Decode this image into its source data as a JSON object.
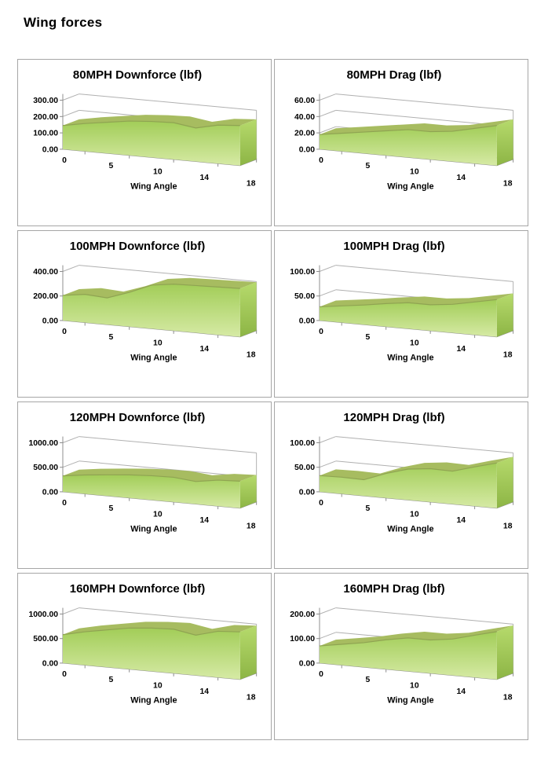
{
  "page": {
    "title": "Wing forces"
  },
  "colors": {
    "border": "#a6a6a6",
    "axis": "#8c8c8c",
    "grid": "#b0b0b0",
    "area_front_top": "#a2cd58",
    "area_front_bottom": "#d6eaa5",
    "ribbon_top": "#a7bc60",
    "lip": "#8fa452",
    "side_top": "#b6da6c",
    "side_bottom": "#8db545",
    "text": "#000000"
  },
  "chart_data": [
    {
      "type": "area",
      "title": "80MPH Downforce (lbf)",
      "xlabel": "Wing Angle",
      "x": [
        0,
        2,
        5,
        7,
        10,
        12,
        14,
        16,
        18
      ],
      "x_tick_labels": [
        "0",
        "5",
        "10",
        "14",
        "18"
      ],
      "y_ticks": [
        0,
        100,
        200,
        300
      ],
      "y_tick_format": "0.00",
      "ylim": [
        0,
        300
      ],
      "values": [
        145,
        170,
        190,
        210,
        220,
        225,
        205,
        235,
        245
      ],
      "grid": true,
      "legend": false
    },
    {
      "type": "area",
      "title": "80MPH Drag (lbf)",
      "xlabel": "Wing Angle",
      "x": [
        0,
        2,
        5,
        7,
        10,
        12,
        14,
        16,
        18
      ],
      "x_tick_labels": [
        "0",
        "5",
        "10",
        "14",
        "18"
      ],
      "y_ticks": [
        0,
        20,
        40,
        60
      ],
      "y_tick_format": "0.00",
      "ylim": [
        0,
        60
      ],
      "values": [
        18,
        22,
        26,
        30,
        34,
        34,
        37,
        43,
        49
      ],
      "grid": true,
      "legend": false
    },
    {
      "type": "area",
      "title": "100MPH Downforce (lbf)",
      "xlabel": "Wing Angle",
      "x": [
        0,
        2,
        5,
        7,
        10,
        12,
        14,
        16,
        18
      ],
      "x_tick_labels": [
        "0",
        "5",
        "10",
        "14",
        "18"
      ],
      "y_ticks": [
        0,
        200,
        400
      ],
      "y_tick_format": "0.00",
      "ylim": [
        0,
        400
      ],
      "values": [
        205,
        230,
        218,
        280,
        355,
        380,
        385,
        390,
        395
      ],
      "grid": true,
      "legend": false
    },
    {
      "type": "area",
      "title": "100MPH Drag (lbf)",
      "xlabel": "Wing Angle",
      "x": [
        0,
        2,
        5,
        7,
        10,
        12,
        14,
        16,
        18
      ],
      "x_tick_labels": [
        "0",
        "5",
        "10",
        "14",
        "18"
      ],
      "y_ticks": [
        0,
        50,
        100
      ],
      "y_tick_format": "0.00",
      "ylim": [
        0,
        100
      ],
      "values": [
        28,
        34,
        40,
        47,
        53,
        53,
        58,
        67,
        76
      ],
      "grid": true,
      "legend": false
    },
    {
      "type": "area",
      "title": "120MPH Downforce (lbf)",
      "xlabel": "Wing Angle",
      "x": [
        0,
        2,
        5,
        7,
        10,
        12,
        14,
        16,
        18
      ],
      "x_tick_labels": [
        "0",
        "5",
        "10",
        "14",
        "18"
      ],
      "y_ticks": [
        0,
        500,
        1000
      ],
      "y_tick_format": "0.00",
      "ylim": [
        0,
        1000
      ],
      "values": [
        325,
        385,
        430,
        470,
        495,
        505,
        460,
        530,
        550
      ],
      "grid": true,
      "legend": false
    },
    {
      "type": "area",
      "title": "120MPH Drag (lbf)",
      "xlabel": "Wing Angle",
      "x": [
        0,
        2,
        5,
        7,
        10,
        12,
        14,
        16,
        18
      ],
      "x_tick_labels": [
        "0",
        "5",
        "10",
        "14",
        "18"
      ],
      "y_ticks": [
        0,
        50,
        100
      ],
      "y_tick_format": "0.00",
      "ylim": [
        0,
        100
      ],
      "values": [
        33,
        34,
        33,
        50,
        63,
        68,
        67,
        80,
        92
      ],
      "grid": true,
      "legend": false
    },
    {
      "type": "area",
      "title": "160MPH Downforce (lbf)",
      "xlabel": "Wing Angle",
      "x": [
        0,
        2,
        5,
        7,
        10,
        12,
        14,
        16,
        18
      ],
      "x_tick_labels": [
        "0",
        "5",
        "10",
        "14",
        "18"
      ],
      "y_ticks": [
        0,
        500,
        1000
      ],
      "y_tick_format": "0.00",
      "ylim": [
        0,
        1000
      ],
      "values": [
        580,
        680,
        760,
        840,
        880,
        900,
        820,
        940,
        970
      ],
      "grid": true,
      "legend": false
    },
    {
      "type": "area",
      "title": "160MPH Drag (lbf)",
      "xlabel": "Wing Angle",
      "x": [
        0,
        2,
        5,
        7,
        10,
        12,
        14,
        16,
        18
      ],
      "x_tick_labels": [
        "0",
        "5",
        "10",
        "14",
        "18"
      ],
      "y_ticks": [
        0,
        100,
        200
      ],
      "y_tick_format": "0.00",
      "ylim": [
        0,
        200
      ],
      "values": [
        70,
        85,
        100,
        120,
        136,
        136,
        148,
        172,
        195
      ],
      "grid": true,
      "legend": false
    }
  ]
}
